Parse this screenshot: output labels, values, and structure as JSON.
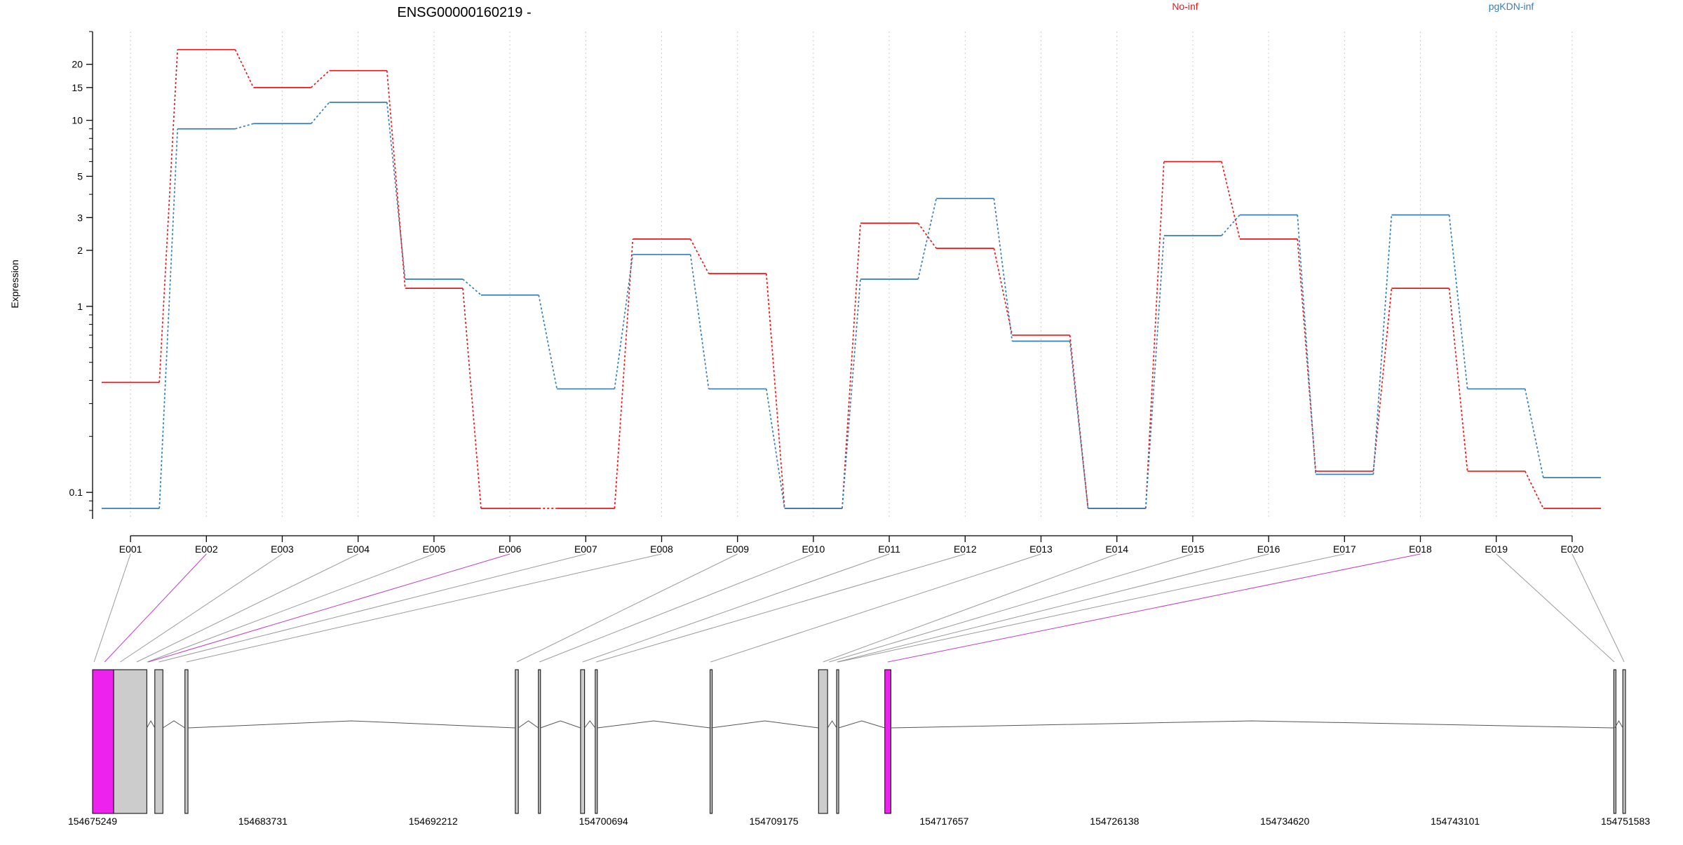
{
  "chart_data": [
    {
      "type": "line",
      "title": "ENSG00000160219 -",
      "ylabel": "Expression",
      "xlabel": "",
      "yscale": "log",
      "ylim": [
        0.072,
        30
      ],
      "ytick_labels": [
        "20",
        "15",
        "10",
        "5",
        "3",
        "2",
        "1",
        "0.1"
      ],
      "ytick_values": [
        20,
        15,
        10,
        5,
        3,
        2,
        1,
        0.1
      ],
      "categories": [
        "E001",
        "E002",
        "E003",
        "E004",
        "E005",
        "E006",
        "E007",
        "E008",
        "E009",
        "E010",
        "E011",
        "E012",
        "E013",
        "E014",
        "E015",
        "E016",
        "E017",
        "E018",
        "E019",
        "E020"
      ],
      "grid": "vertical dotted at each exon",
      "legend_position": "top",
      "series": [
        {
          "name": "No-inf",
          "color": "#e41a1c",
          "values": [
            0.39,
            24,
            15,
            18.5,
            1.25,
            0.082,
            0.082,
            2.3,
            1.5,
            0.082,
            2.8,
            2.05,
            0.7,
            0.082,
            6,
            2.3,
            0.13,
            1.25,
            0.13,
            0.082
          ]
        },
        {
          "name": "pgKDN-inf",
          "color": "#377eb8",
          "values": [
            0.082,
            9,
            9.6,
            12.5,
            1.4,
            1.15,
            0.36,
            1.9,
            0.36,
            0.082,
            1.4,
            3.8,
            0.65,
            0.082,
            2.4,
            3.1,
            0.125,
            3.1,
            0.36,
            0.12
          ]
        }
      ]
    },
    {
      "type": "gene_model",
      "genomic_ticks": [
        "154675249",
        "154683731",
        "154692212",
        "154700694",
        "154709175",
        "154717657",
        "154726138",
        "154734620",
        "154743101",
        "154751583"
      ],
      "genomic_range": [
        154675249,
        154751583
      ],
      "highlight_color": "#ee22ee",
      "box_color": "#cccccc",
      "connector_color": "#9a9a9a",
      "highlighted_exons": [
        "E002",
        "E006",
        "E018"
      ],
      "exon_map": [
        {
          "exon": "E001",
          "bin_start": 154675249,
          "bin_end": 154675400
        },
        {
          "exon": "E002",
          "bin_start": 154675400,
          "bin_end": 154676300
        },
        {
          "exon": "E003",
          "bin_start": 154676300,
          "bin_end": 154676950
        },
        {
          "exon": "E004",
          "bin_start": 154676950,
          "bin_end": 154677950
        },
        {
          "exon": "E005",
          "bin_start": 154677950,
          "bin_end": 154678000
        },
        {
          "exon": "E006",
          "bin_start": 154678000,
          "bin_end": 154678050
        },
        {
          "exon": "E007",
          "bin_start": 154678350,
          "bin_end": 154678750
        },
        {
          "exon": "E008",
          "bin_start": 154679850,
          "bin_end": 154680000
        },
        {
          "exon": "E009",
          "bin_start": 154696300,
          "bin_end": 154696450
        },
        {
          "exon": "E010",
          "bin_start": 154697450,
          "bin_end": 154697550
        },
        {
          "exon": "E011",
          "bin_start": 154699550,
          "bin_end": 154699750
        },
        {
          "exon": "E012",
          "bin_start": 154700280,
          "bin_end": 154700380
        },
        {
          "exon": "E013",
          "bin_start": 154706000,
          "bin_end": 154706050
        },
        {
          "exon": "E014",
          "bin_start": 154711400,
          "bin_end": 154711850
        },
        {
          "exon": "E015",
          "bin_start": 154711850,
          "bin_end": 154712000
        },
        {
          "exon": "E016",
          "bin_start": 154712300,
          "bin_end": 154712350
        },
        {
          "exon": "E017",
          "bin_start": 154712350,
          "bin_end": 154712400
        },
        {
          "exon": "E018",
          "bin_start": 154714700,
          "bin_end": 154715000
        },
        {
          "exon": "E019",
          "bin_start": 154751000,
          "bin_end": 154751050
        },
        {
          "exon": "E020",
          "bin_start": 154751450,
          "bin_end": 154751583
        }
      ],
      "exon_blocks": [
        {
          "start": 154675249,
          "end": 154676300,
          "highlight": true
        },
        {
          "start": 154676300,
          "end": 154677950,
          "highlight": false
        },
        {
          "start": 154678350,
          "end": 154678750,
          "highlight": false
        },
        {
          "start": 154679850,
          "end": 154680000,
          "highlight": false
        },
        {
          "start": 154696300,
          "end": 154696450,
          "highlight": false
        },
        {
          "start": 154697450,
          "end": 154697550,
          "highlight": false
        },
        {
          "start": 154699550,
          "end": 154699750,
          "highlight": false
        },
        {
          "start": 154700280,
          "end": 154700380,
          "highlight": false
        },
        {
          "start": 154706000,
          "end": 154706050,
          "highlight": false
        },
        {
          "start": 154711400,
          "end": 154711850,
          "highlight": false
        },
        {
          "start": 154712300,
          "end": 154712400,
          "highlight": false
        },
        {
          "start": 154714700,
          "end": 154715000,
          "highlight": true
        },
        {
          "start": 154751000,
          "end": 154751050,
          "highlight": false
        },
        {
          "start": 154751450,
          "end": 154751583,
          "highlight": false
        }
      ]
    }
  ]
}
